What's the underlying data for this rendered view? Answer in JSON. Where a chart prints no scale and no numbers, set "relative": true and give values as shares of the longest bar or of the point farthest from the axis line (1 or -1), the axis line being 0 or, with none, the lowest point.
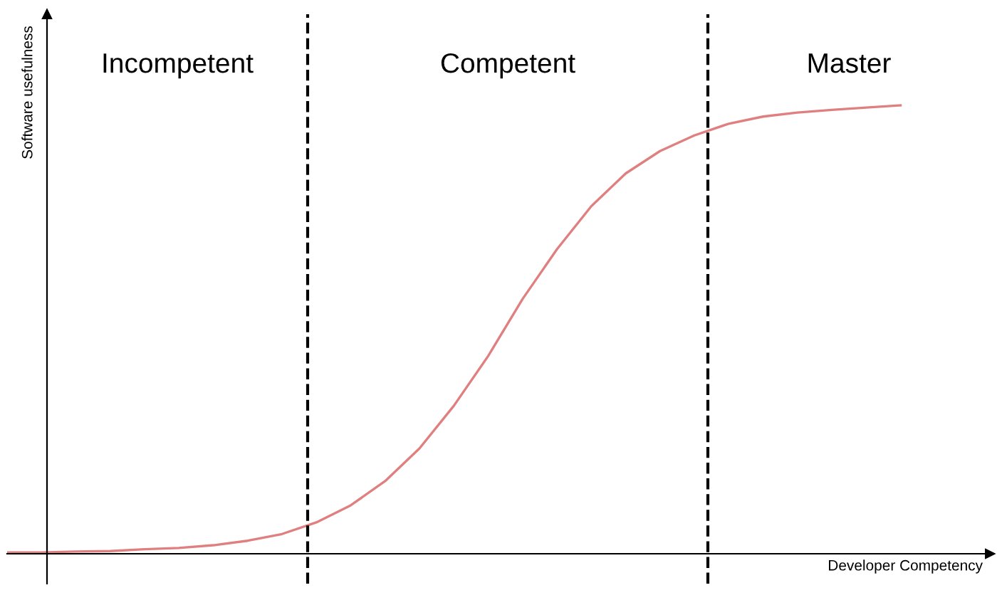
{
  "chart_data": {
    "type": "line",
    "relative": true,
    "xlabel": "Developer Competency",
    "ylabel": "Software usefulness",
    "categories": [
      null,
      null,
      null,
      null,
      null,
      null,
      null,
      null,
      null,
      null,
      null,
      null,
      null,
      null,
      null,
      null,
      null,
      null,
      null,
      null,
      null,
      null,
      null,
      null,
      null,
      null,
      null
    ],
    "series": [
      {
        "color": "#e07f7f",
        "values": [
          0.003,
          0.003,
          0.005,
          0.006,
          0.01,
          0.013,
          0.019,
          0.029,
          0.044,
          0.07,
          0.108,
          0.162,
          0.235,
          0.33,
          0.441,
          0.568,
          0.679,
          0.775,
          0.848,
          0.898,
          0.933,
          0.959,
          0.975,
          0.984,
          0.99,
          0.995,
          1.0
        ]
      }
    ],
    "annotations": [
      "Incompetent",
      "Competent",
      "Master"
    ],
    "grid": false,
    "legend": false,
    "marker": "none",
    "line_style": "solid"
  }
}
